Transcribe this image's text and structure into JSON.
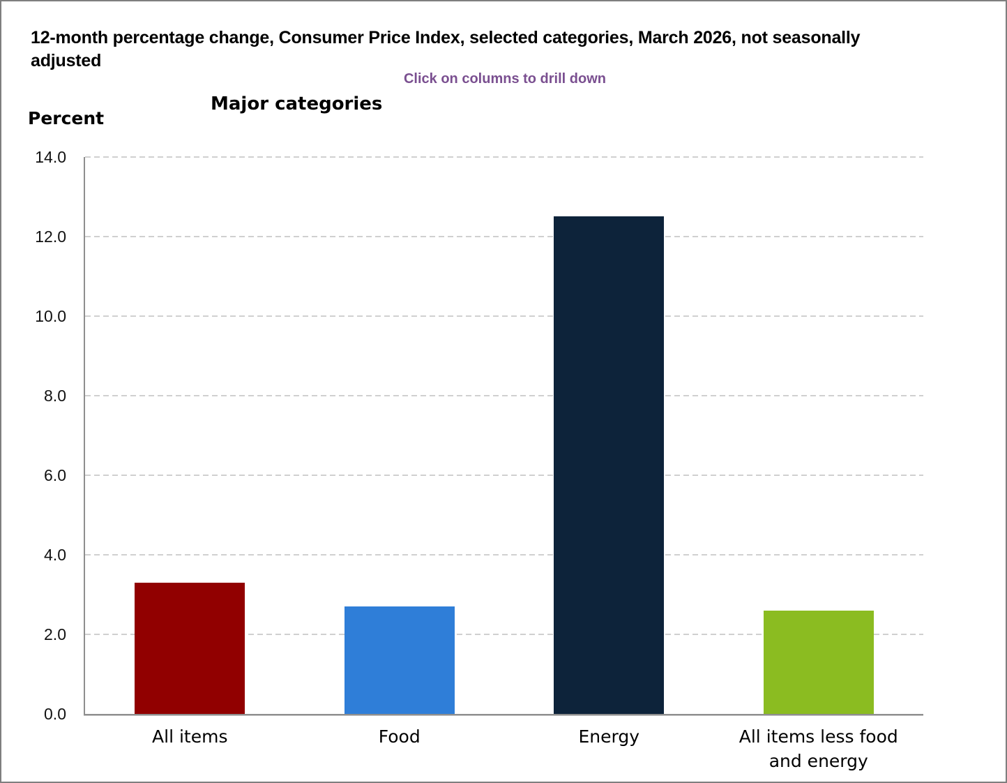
{
  "header": {
    "title": "12-month percentage change, Consumer Price Index, selected categories, March 2026, not seasonally adjusted",
    "subtitle": "Click on columns to drill down",
    "subtitle_color": "#7a4f90",
    "chart_heading": "Major categories",
    "y_axis_title": "Percent"
  },
  "chart_data": {
    "type": "bar",
    "title": "Major categories",
    "ylabel": "Percent",
    "categories": [
      "All items",
      "Food",
      "Energy",
      "All items less food and energy"
    ],
    "values": [
      3.3,
      2.7,
      12.5,
      2.6
    ],
    "colors": [
      "#910000",
      "#2f7ed8",
      "#0d233a",
      "#8bbc21"
    ],
    "ylim": [
      0,
      14
    ],
    "ytick_step": 2,
    "ytick_labels": [
      "0.0",
      "2.0",
      "4.0",
      "6.0",
      "8.0",
      "10.0",
      "12.0",
      "14.0"
    ],
    "grid": "horizontal-dashed",
    "legend": "none",
    "note": "columns are clickable for drill down"
  }
}
